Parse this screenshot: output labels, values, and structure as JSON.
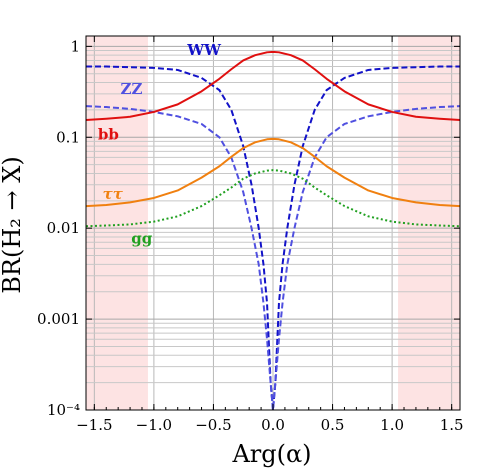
{
  "chart_data": {
    "type": "line",
    "xlabel": "Arg(α)",
    "ylabel": "BR(H₂ → X)",
    "x_range": [
      -1.57,
      1.57
    ],
    "y_range": [
      0.0001,
      1.3
    ],
    "y_scale": "log",
    "x_ticks": [
      "−1.5",
      "−1.0",
      "−0.5",
      "0.0",
      "0.5",
      "1.0",
      "1.5"
    ],
    "x_tick_values": [
      -1.5,
      -1.0,
      -0.5,
      0.0,
      0.5,
      1.0,
      1.5
    ],
    "y_ticks": [
      "10⁻⁴",
      "0.001",
      "0.01",
      "0.1",
      "1"
    ],
    "y_tick_values": [
      0.0001,
      0.001,
      0.01,
      0.1,
      1
    ],
    "grid": true,
    "shaded_regions": [
      {
        "x_from": -1.57,
        "x_to": -1.05,
        "color": "#fde3e3"
      },
      {
        "x_from": 1.05,
        "x_to": 1.57,
        "color": "#fde3e3"
      }
    ],
    "series": [
      {
        "name": "WW",
        "label": "WW",
        "color": "#1212c8",
        "dash": "dashed",
        "x": [
          -1.57,
          -1.4,
          -1.2,
          -1.0,
          -0.8,
          -0.6,
          -0.45,
          -0.35,
          -0.25,
          -0.18,
          -0.12,
          -0.08,
          -0.05,
          -0.02,
          0.0,
          0.02,
          0.05,
          0.08,
          0.12,
          0.18,
          0.25,
          0.35,
          0.45,
          0.6,
          0.8,
          1.0,
          1.2,
          1.4,
          1.57
        ],
        "y": [
          0.6,
          0.6,
          0.59,
          0.58,
          0.55,
          0.45,
          0.33,
          0.2,
          0.08,
          0.03,
          0.01,
          0.004,
          0.0015,
          0.0002,
          0.0001,
          0.0002,
          0.0015,
          0.004,
          0.01,
          0.03,
          0.08,
          0.2,
          0.33,
          0.45,
          0.55,
          0.58,
          0.59,
          0.6,
          0.6
        ]
      },
      {
        "name": "ZZ",
        "label": "ZZ",
        "color": "#5050e0",
        "dash": "dashed",
        "x": [
          -1.57,
          -1.4,
          -1.2,
          -1.0,
          -0.8,
          -0.6,
          -0.45,
          -0.35,
          -0.25,
          -0.18,
          -0.12,
          -0.08,
          -0.05,
          -0.02,
          0.0,
          0.02,
          0.05,
          0.08,
          0.12,
          0.18,
          0.25,
          0.35,
          0.45,
          0.6,
          0.8,
          1.0,
          1.2,
          1.4,
          1.57
        ],
        "y": [
          0.22,
          0.215,
          0.205,
          0.19,
          0.17,
          0.14,
          0.1,
          0.06,
          0.025,
          0.01,
          0.004,
          0.0015,
          0.0006,
          0.0002,
          0.0001,
          0.0002,
          0.0006,
          0.0015,
          0.004,
          0.01,
          0.025,
          0.06,
          0.1,
          0.14,
          0.17,
          0.19,
          0.205,
          0.215,
          0.22
        ]
      },
      {
        "name": "bb",
        "label": "bb",
        "color": "#e01010",
        "dash": "solid",
        "x": [
          -1.57,
          -1.4,
          -1.2,
          -1.0,
          -0.8,
          -0.6,
          -0.45,
          -0.35,
          -0.25,
          -0.15,
          -0.05,
          0.0,
          0.05,
          0.15,
          0.25,
          0.35,
          0.45,
          0.6,
          0.8,
          1.0,
          1.2,
          1.4,
          1.57
        ],
        "y": [
          0.155,
          0.16,
          0.168,
          0.19,
          0.23,
          0.32,
          0.44,
          0.56,
          0.7,
          0.8,
          0.86,
          0.87,
          0.86,
          0.8,
          0.7,
          0.56,
          0.44,
          0.32,
          0.23,
          0.19,
          0.168,
          0.16,
          0.155
        ]
      },
      {
        "name": "ττ",
        "label": "ττ",
        "color": "#f08010",
        "dash": "solid",
        "x": [
          -1.57,
          -1.4,
          -1.2,
          -1.0,
          -0.8,
          -0.6,
          -0.45,
          -0.35,
          -0.25,
          -0.15,
          -0.05,
          0.0,
          0.05,
          0.15,
          0.25,
          0.35,
          0.45,
          0.6,
          0.8,
          1.0,
          1.2,
          1.4,
          1.57
        ],
        "y": [
          0.0175,
          0.018,
          0.0192,
          0.0215,
          0.026,
          0.036,
          0.048,
          0.061,
          0.076,
          0.088,
          0.095,
          0.096,
          0.095,
          0.088,
          0.076,
          0.061,
          0.048,
          0.036,
          0.026,
          0.0215,
          0.0192,
          0.018,
          0.0175
        ]
      },
      {
        "name": "gg",
        "label": "gg",
        "color": "#20a020",
        "dash": "dotted",
        "x": [
          -1.57,
          -1.4,
          -1.2,
          -1.0,
          -0.8,
          -0.6,
          -0.45,
          -0.35,
          -0.25,
          -0.15,
          -0.05,
          0.0,
          0.05,
          0.15,
          0.25,
          0.35,
          0.45,
          0.6,
          0.8,
          1.0,
          1.2,
          1.4,
          1.57
        ],
        "y": [
          0.0105,
          0.0107,
          0.011,
          0.0118,
          0.0135,
          0.0175,
          0.023,
          0.028,
          0.035,
          0.04,
          0.043,
          0.0435,
          0.043,
          0.04,
          0.035,
          0.028,
          0.023,
          0.0175,
          0.0135,
          0.0118,
          0.011,
          0.0107,
          0.0105
        ]
      }
    ]
  }
}
